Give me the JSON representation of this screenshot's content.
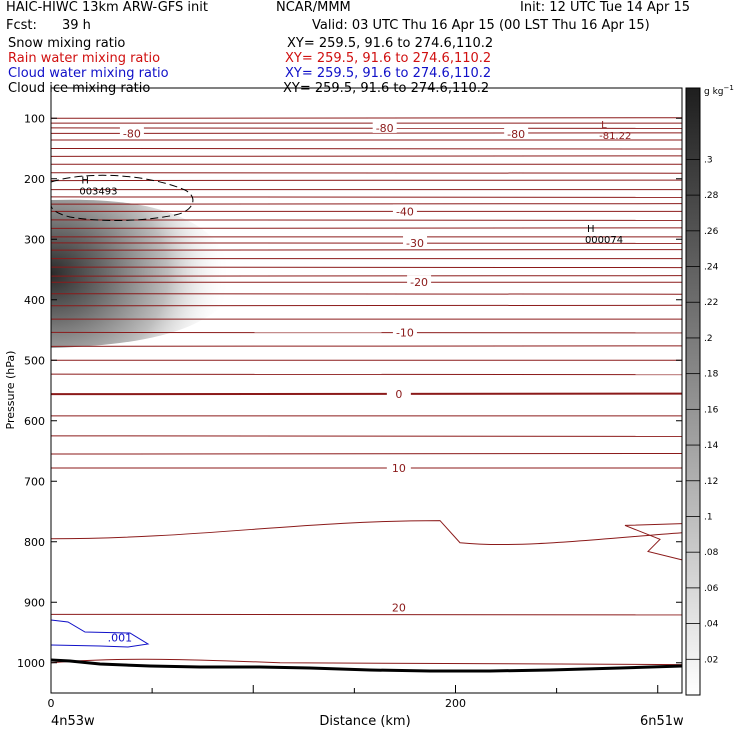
{
  "header": {
    "title_left": "HAIC-HIWC 13km ARW-GFS init",
    "title_center": "NCAR/MMM",
    "init": "Init: 12 UTC Tue 14 Apr 15",
    "fcst_label": "Fcst:",
    "fcst_value": "39 h",
    "valid": "Valid: 03 UTC Thu 16 Apr 15 (00 LST Thu 16 Apr 15)"
  },
  "fields": [
    {
      "name": "Snow mixing ratio",
      "xy": "XY= 259.5, 91.6 to 274.6,110.2",
      "color": "#000000"
    },
    {
      "name": "Rain water mixing ratio",
      "xy": "XY= 259.5, 91.6 to 274.6,110.2",
      "color": "#d01010"
    },
    {
      "name": "Cloud water mixing ratio",
      "xy": "XY= 259.5, 91.6 to 274.6,110.2",
      "color": "#1010c8"
    },
    {
      "name": "Cloud ice mixing ratio",
      "xy": "XY= 259.5, 91.6 to 274.6,110.2",
      "color": "#000000"
    }
  ],
  "chart_data": {
    "type": "heatmap",
    "description_of_axes": "vertical cross-section",
    "xlabel": "Distance (km)",
    "ylabel": "Pressure (hPa)",
    "xlim": [
      0,
      312
    ],
    "ylim": [
      1050,
      50
    ],
    "x_ticks": [
      0,
      200
    ],
    "y_ticks": [
      100,
      200,
      300,
      400,
      500,
      600,
      700,
      800,
      900,
      1000
    ],
    "x_start_label": "4n53w",
    "x_end_label": "6n51w",
    "colorbar": {
      "unit_base": "g kg",
      "unit_exp": "−1",
      "ticks": [
        ".02",
        ".04",
        ".06",
        ".08",
        ".1",
        ".12",
        ".14",
        ".16",
        ".18",
        ".2",
        ".22",
        ".24",
        ".26",
        ".28",
        ".3"
      ],
      "max": 0.34
    },
    "isotherm_labels": [
      {
        "text": "-80",
        "x": 40,
        "p": 125
      },
      {
        "text": "-80",
        "x": 165,
        "p": 116
      },
      {
        "text": "-80",
        "x": 230,
        "p": 126
      },
      {
        "text": "-40",
        "x": 175,
        "p": 254
      },
      {
        "text": "-30",
        "x": 180,
        "p": 306
      },
      {
        "text": "-20",
        "x": 182,
        "p": 371
      },
      {
        "text": "-10",
        "x": 175,
        "p": 454
      },
      {
        "text": "0",
        "x": 172,
        "p": 556
      },
      {
        "text": "10",
        "x": 172,
        "p": 678
      },
      {
        "text": "20",
        "x": 172,
        "p": 909
      }
    ],
    "extrema": [
      {
        "kind": "H",
        "value": "003493",
        "x": 15,
        "p": 208
      },
      {
        "kind": "H",
        "value": "000074",
        "x": 265,
        "p": 288
      },
      {
        "kind": "L",
        "value": "-81.22",
        "x": 272,
        "p": 116
      }
    ],
    "cloud_water_contour": {
      "label": ".001",
      "color": "#1010c8"
    },
    "snow_contour_level": "0.001"
  }
}
